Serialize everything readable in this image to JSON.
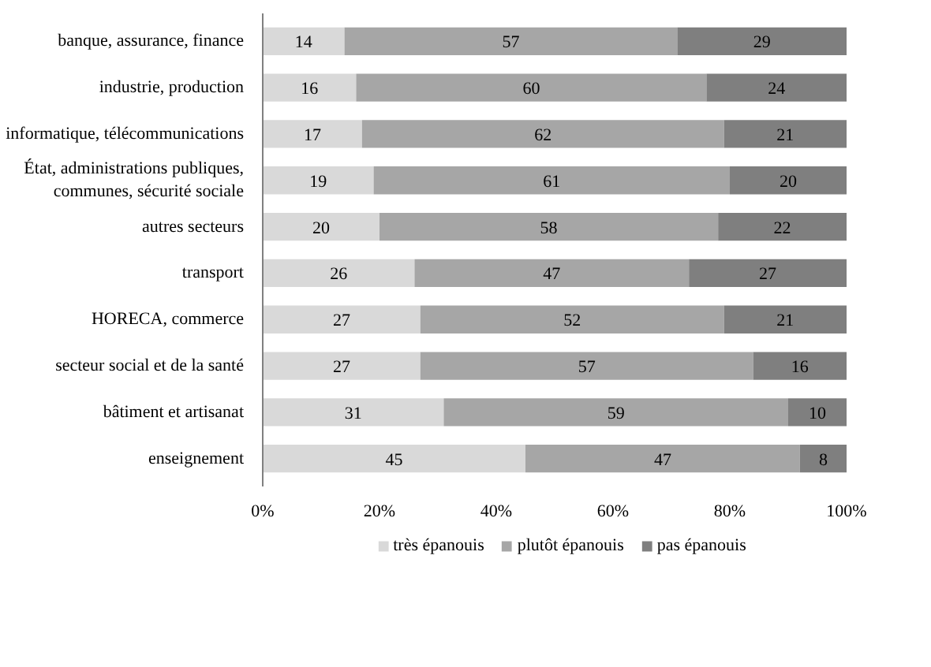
{
  "chart_data": {
    "type": "bar",
    "orientation": "horizontal",
    "stacked": true,
    "data_labels": true,
    "grid": false,
    "legend": "bottom",
    "categories": [
      "banque, assurance, finance",
      "industrie, production",
      "informatique, télécommunications",
      "État, administrations publiques,\ncommunes, sécurité sociale",
      "autres secteurs",
      "transport",
      "HORECA, commerce",
      "secteur social et de la santé",
      "bâtiment et artisanat",
      "enseignement"
    ],
    "series": [
      {
        "name": "très épanouis",
        "color": "#d9d9d9",
        "values": [
          14,
          16,
          17,
          19,
          20,
          26,
          27,
          27,
          31,
          45
        ]
      },
      {
        "name": "plutôt épanouis",
        "color": "#a6a6a6",
        "values": [
          57,
          60,
          62,
          61,
          58,
          47,
          52,
          57,
          59,
          47
        ]
      },
      {
        "name": "pas épanouis",
        "color": "#7f7f7f",
        "values": [
          29,
          24,
          21,
          20,
          22,
          27,
          21,
          16,
          10,
          8
        ]
      }
    ],
    "xlim": [
      0,
      100
    ],
    "xticks": [
      {
        "value": 0,
        "label": "0%"
      },
      {
        "value": 20,
        "label": "20%"
      },
      {
        "value": 40,
        "label": "40%"
      },
      {
        "value": 60,
        "label": "60%"
      },
      {
        "value": 80,
        "label": "80%"
      },
      {
        "value": 100,
        "label": "100%"
      }
    ]
  }
}
